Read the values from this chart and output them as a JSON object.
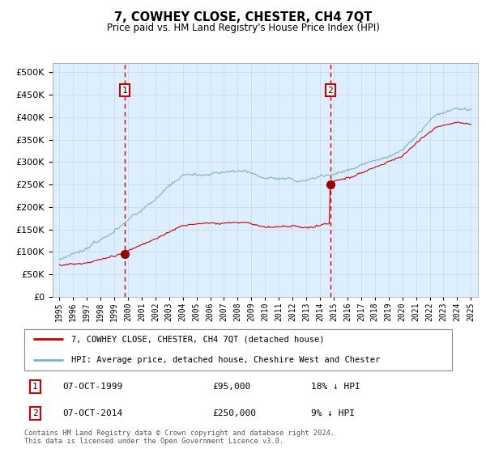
{
  "title": "7, COWHEY CLOSE, CHESTER, CH4 7QT",
  "subtitle": "Price paid vs. HM Land Registry's House Price Index (HPI)",
  "legend_line1": "7, COWHEY CLOSE, CHESTER, CH4 7QT (detached house)",
  "legend_line2": "HPI: Average price, detached house, Cheshire West and Chester",
  "annotation1_label": "1",
  "annotation1_date": "07-OCT-1999",
  "annotation1_price": "£95,000",
  "annotation1_hpi": "18% ↓ HPI",
  "annotation2_label": "2",
  "annotation2_date": "07-OCT-2014",
  "annotation2_price": "£250,000",
  "annotation2_hpi": "9% ↓ HPI",
  "footer": "Contains HM Land Registry data © Crown copyright and database right 2024.\nThis data is licensed under the Open Government Licence v3.0.",
  "sale1_x": 1999.75,
  "sale1_y": 95000,
  "sale2_x": 2014.75,
  "sale2_y": 250000,
  "vline1_x": 1999.75,
  "vline2_x": 2014.75,
  "ylim": [
    0,
    520000
  ],
  "xlim_start": 1994.5,
  "xlim_end": 2025.5,
  "price_line_color": "#cc0000",
  "hpi_line_color": "#7ab0d4",
  "background_color": "#ddeeff",
  "vline_color": "#cc0000",
  "annotation_box_color": "#cc0000",
  "sale_dot_color": "#990000"
}
